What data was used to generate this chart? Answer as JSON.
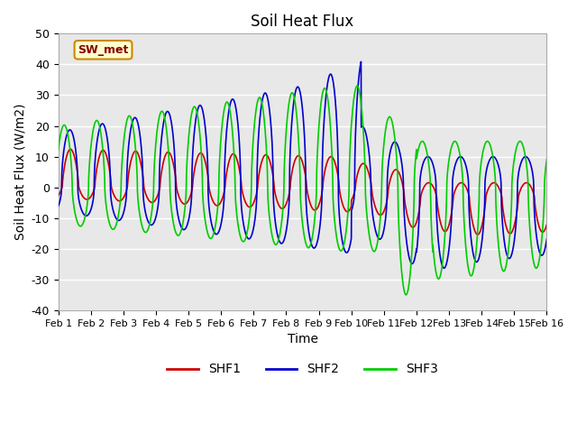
{
  "title": "Soil Heat Flux",
  "xlabel": "Time",
  "ylabel": "Soil Heat Flux (W/m2)",
  "ylim": [
    -40,
    50
  ],
  "xlim": [
    0,
    15
  ],
  "xtick_labels": [
    "Feb 1",
    "Feb 2",
    "Feb 3",
    "Feb 4",
    "Feb 5",
    "Feb 6",
    "Feb 7",
    "Feb 8",
    "Feb 9",
    "Feb 10",
    "Feb 11",
    "Feb 12",
    "Feb 13",
    "Feb 14",
    "Feb 15",
    "Feb 16"
  ],
  "ytick_values": [
    -40,
    -30,
    -20,
    -10,
    0,
    10,
    20,
    30,
    40,
    50
  ],
  "shf1_color": "#cc0000",
  "shf2_color": "#0000cc",
  "shf3_color": "#00cc00",
  "bg_color": "#e8e8e8",
  "grid_color": "#ffffff",
  "annotation_text": "SW_met",
  "annotation_bg": "#ffffcc",
  "annotation_border": "#cc8800",
  "annotation_text_color": "#880000",
  "legend_labels": [
    "SHF1",
    "SHF2",
    "SHF3"
  ]
}
